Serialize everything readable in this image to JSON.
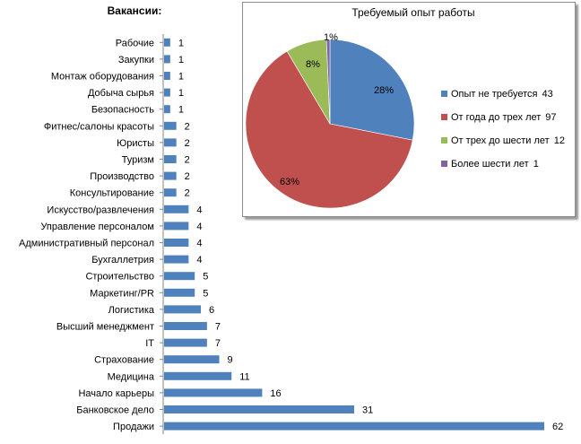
{
  "chart_data": [
    {
      "type": "bar",
      "orientation": "horizontal",
      "title": "Вакансии:",
      "categories": [
        "Рабочие",
        "Закупки",
        "Монтаж оборудования",
        "Добыча сырья",
        "Безопасность",
        "Фитнес/салоны красоты",
        "Юристы",
        "Туризм",
        "Производство",
        "Консультирование",
        "Искусство/развлечения",
        "Управление персоналом",
        "Административный персонал",
        "Бухгаллетрия",
        "Строительство",
        "Маркетинг/PR",
        "Логистика",
        "Высший менеджмент",
        "IT",
        "Страхование",
        "Медицина",
        "Начало карьеры",
        "Банковское дело",
        "Продажи"
      ],
      "values": [
        1,
        1,
        1,
        1,
        1,
        2,
        2,
        2,
        2,
        2,
        4,
        4,
        4,
        4,
        5,
        5,
        6,
        7,
        7,
        9,
        11,
        16,
        31,
        62
      ],
      "color": "#4f81bd",
      "grid": false
    },
    {
      "type": "pie",
      "title": "Требуемый опыт работы",
      "labels": [
        "Опыт не требуется",
        "От года до трех лет",
        "От трех до шести лет",
        "Более шести лет"
      ],
      "values": [
        43,
        97,
        12,
        1
      ],
      "percent_labels": [
        "28%",
        "63%",
        "8%",
        "1%"
      ],
      "colors": [
        "#4f81bd",
        "#c0504d",
        "#9bbb59",
        "#8064a2"
      ],
      "legend": "right"
    }
  ]
}
